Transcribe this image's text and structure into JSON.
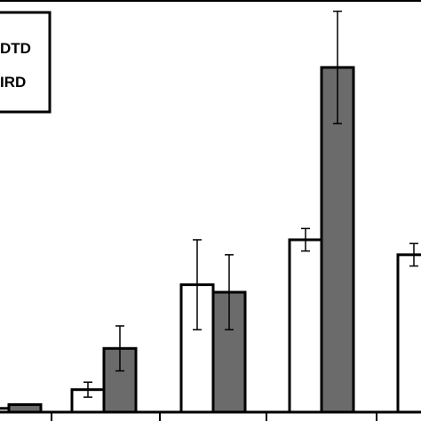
{
  "chart_data": {
    "type": "bar",
    "title": "",
    "xlabel": "",
    "ylabel": "",
    "categories": [
      "",
      "",
      "",
      ""
    ],
    "series": [
      {
        "name": "DTD",
        "fill": "#ffffff",
        "values": [
          1,
          6,
          34,
          46
        ],
        "errors": [
          1,
          2,
          12,
          3
        ]
      },
      {
        "name": "IRD",
        "fill": "#6b6b6b",
        "values": [
          2,
          17,
          32,
          92
        ],
        "errors": [
          0,
          6,
          10,
          15
        ]
      }
    ],
    "partial_bar": {
      "series": "DTD",
      "value": 42,
      "error": 3
    },
    "ylim": [
      0,
      110
    ],
    "grid": false,
    "legend_position": "top-left",
    "legend_labels_visible": [
      "DTD",
      "IRD"
    ],
    "colors": {
      "axis": "#000000",
      "bar_outline": "#000000",
      "bar_dark": "#6b6b6b",
      "bar_light": "#ffffff"
    }
  }
}
